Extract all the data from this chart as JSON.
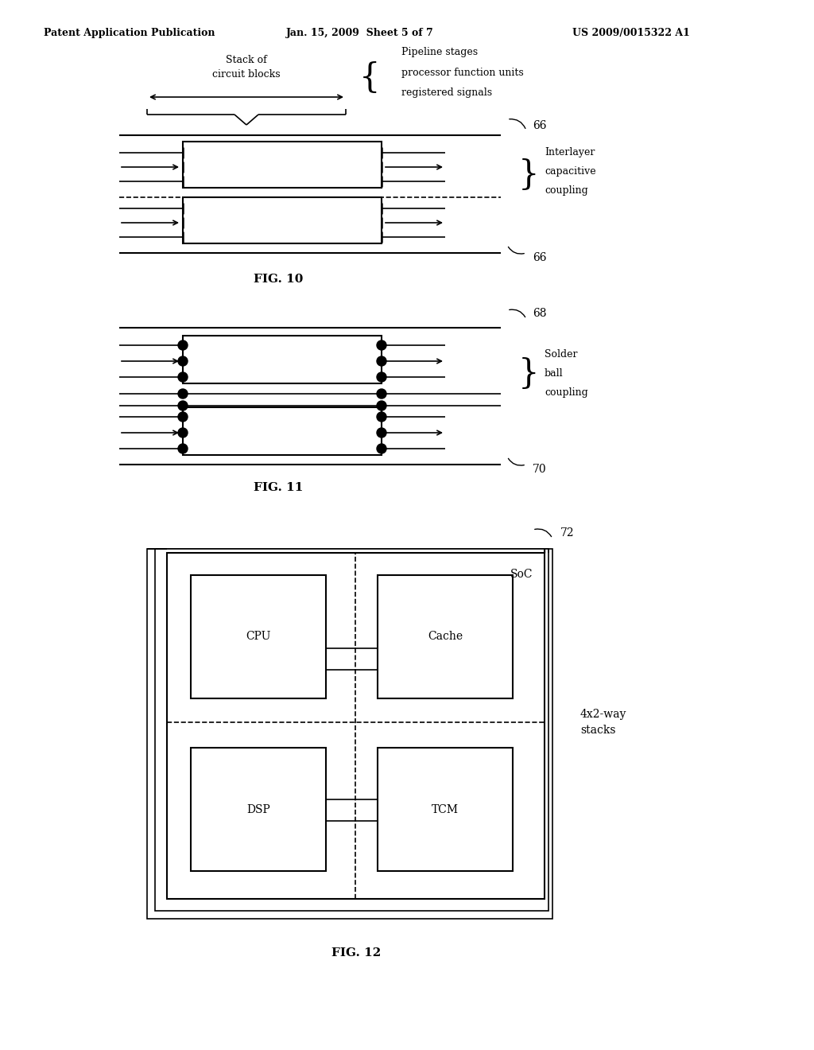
{
  "bg_color": "#ffffff",
  "header_left": "Patent Application Publication",
  "header_mid": "Jan. 15, 2009  Sheet 5 of 7",
  "header_right": "US 2009/0015322 A1",
  "fig10_label": "FIG. 10",
  "fig11_label": "FIG. 11",
  "fig12_label": "FIG. 12",
  "label_66_top": "66",
  "label_66_bot": "66",
  "label_68": "68",
  "label_70": "70",
  "label_72": "72",
  "text_stack_of": "Stack of",
  "text_circuit_blocks": "circuit blocks",
  "text_pipeline_stages": "Pipeline stages",
  "text_processor_func": "processor function units",
  "text_registered": "registered signals",
  "text_interlayer": "Interlayer",
  "text_capacitive": "capacitive",
  "text_coupling10": "coupling",
  "text_solder": "Solder",
  "text_ball": "ball",
  "text_coupling11": "coupling",
  "text_soc": "SoC",
  "text_cpu": "CPU",
  "text_cache": "Cache",
  "text_dsp": "DSP",
  "text_tcm": "TCM",
  "text_4x2way": "4x2-way\nstacks"
}
